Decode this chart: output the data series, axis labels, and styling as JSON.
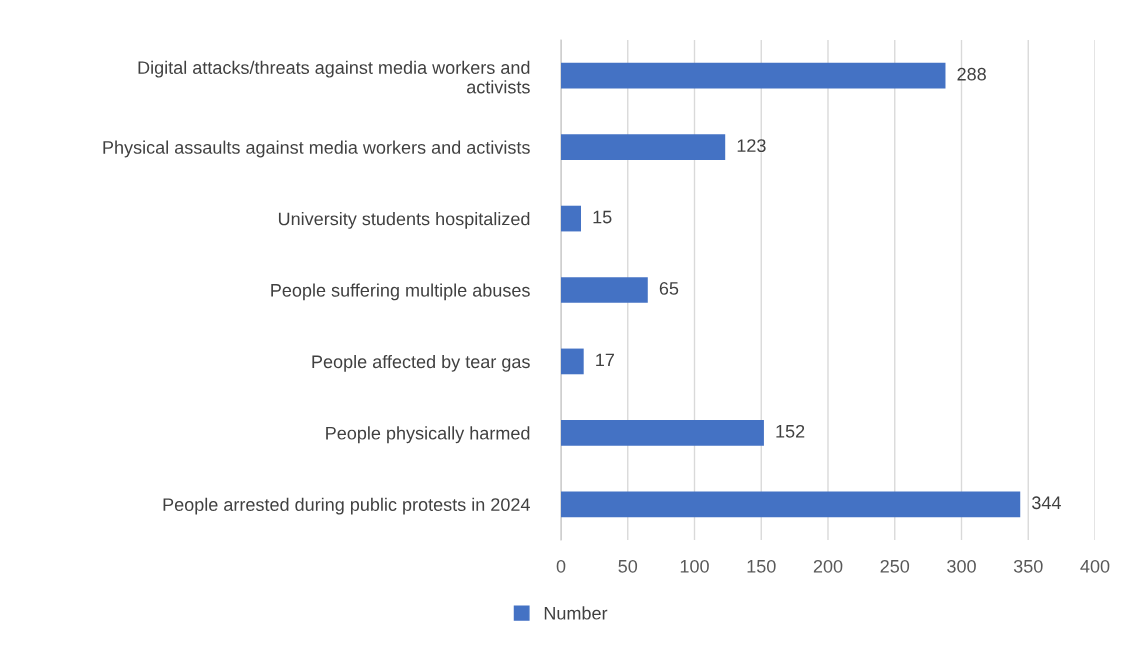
{
  "chart_data": {
    "type": "bar",
    "orientation": "horizontal",
    "categories": [
      "Digital attacks/threats against media workers and\nactivists",
      "Physical assaults against media workers and activists",
      "University students hospitalized",
      "People suffering multiple abuses",
      "People affected by tear gas",
      "People physically harmed",
      "People arrested during public protests in 2024"
    ],
    "series": [
      {
        "name": "Number",
        "color": "#4472c4",
        "values": [
          288,
          123,
          15,
          65,
          17,
          152,
          344
        ]
      }
    ],
    "xlim": [
      0,
      400
    ],
    "xticks": [
      0,
      50,
      100,
      150,
      200,
      250,
      300,
      350,
      400
    ],
    "grid": "x",
    "legend": "bottom",
    "data_labels": true
  }
}
